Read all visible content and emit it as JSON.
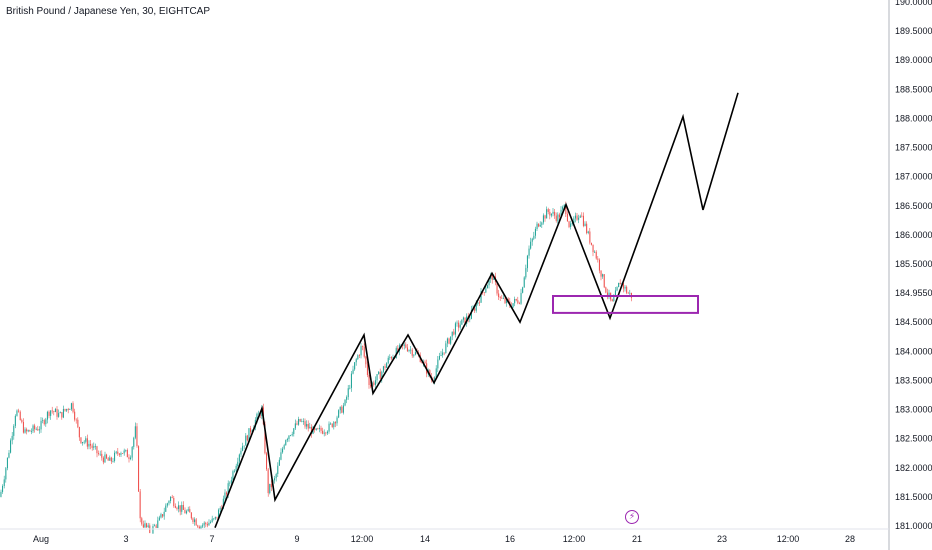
{
  "header": {
    "title": "British Pound / Japanese Yen, 30, EIGHTCAP"
  },
  "colors": {
    "up": "#26a69a",
    "down": "#ef5350",
    "line": "#000000",
    "box": "#9c27b0",
    "axis": "#b2b5be"
  },
  "icons": {
    "event": "lightning-icon"
  },
  "chart_data": {
    "type": "candlestick",
    "title": "British Pound / Japanese Yen, 30, EIGHTCAP",
    "y_ticks": [
      "190.00000",
      "189.50000",
      "189.00000",
      "188.50000",
      "188.00000",
      "187.50000",
      "187.00000",
      "186.50000",
      "186.00000",
      "185.50000",
      "184.95500",
      "184.50000",
      "184.00000",
      "183.50000",
      "183.00000",
      "182.50000",
      "182.00000",
      "181.50000",
      "181.00000"
    ],
    "ylim": [
      180.97,
      190.02
    ],
    "x_ticks": [
      "Aug",
      "3",
      "7",
      "9",
      "12:00",
      "14",
      "16",
      "12:00",
      "21",
      "23",
      "12:00",
      "28"
    ],
    "price_series": [
      [
        0,
        181.5
      ],
      [
        8,
        182.2
      ],
      [
        16,
        183.0
      ],
      [
        25,
        182.6
      ],
      [
        40,
        182.7
      ],
      [
        50,
        183.0
      ],
      [
        60,
        182.9
      ],
      [
        72,
        183.1
      ],
      [
        80,
        182.5
      ],
      [
        90,
        182.4
      ],
      [
        100,
        182.2
      ],
      [
        110,
        182.1
      ],
      [
        120,
        182.3
      ],
      [
        130,
        182.2
      ],
      [
        136,
        182.7
      ],
      [
        140,
        181.1
      ],
      [
        150,
        180.9
      ],
      [
        160,
        181.1
      ],
      [
        170,
        181.5
      ],
      [
        180,
        181.3
      ],
      [
        190,
        181.2
      ],
      [
        200,
        181.0
      ],
      [
        215,
        181.1
      ],
      [
        225,
        181.5
      ],
      [
        240,
        182.3
      ],
      [
        255,
        182.8
      ],
      [
        262,
        183.0
      ],
      [
        268,
        181.6
      ],
      [
        275,
        181.8
      ],
      [
        285,
        182.5
      ],
      [
        300,
        182.8
      ],
      [
        315,
        182.6
      ],
      [
        330,
        182.7
      ],
      [
        345,
        183.1
      ],
      [
        355,
        183.8
      ],
      [
        362,
        184.1
      ],
      [
        370,
        183.4
      ],
      [
        380,
        183.6
      ],
      [
        390,
        183.9
      ],
      [
        405,
        184.1
      ],
      [
        420,
        183.9
      ],
      [
        432,
        183.5
      ],
      [
        440,
        183.9
      ],
      [
        455,
        184.4
      ],
      [
        470,
        184.6
      ],
      [
        485,
        185.1
      ],
      [
        492,
        185.3
      ],
      [
        500,
        184.9
      ],
      [
        510,
        184.8
      ],
      [
        520,
        184.9
      ],
      [
        528,
        185.7
      ],
      [
        538,
        186.2
      ],
      [
        548,
        186.4
      ],
      [
        558,
        186.3
      ],
      [
        565,
        186.5
      ],
      [
        570,
        186.1
      ],
      [
        580,
        186.4
      ],
      [
        588,
        186.0
      ],
      [
        597,
        185.6
      ],
      [
        605,
        185.1
      ],
      [
        612,
        184.8
      ],
      [
        620,
        185.2
      ],
      [
        628,
        185.0
      ],
      [
        632,
        184.95
      ]
    ],
    "projection_path": [
      [
        215,
        180.97
      ],
      [
        262,
        183.02
      ],
      [
        275,
        181.45
      ],
      [
        364,
        184.28
      ],
      [
        373,
        183.28
      ],
      [
        408,
        184.28
      ],
      [
        434,
        183.46
      ],
      [
        492,
        185.34
      ],
      [
        520,
        184.5
      ],
      [
        566,
        186.52
      ],
      [
        610,
        184.57
      ],
      [
        683,
        188.03
      ],
      [
        703,
        186.43
      ],
      [
        738,
        188.44
      ]
    ],
    "zone": {
      "x1": 553,
      "x2": 698,
      "y_high": 184.95,
      "y_low": 184.66
    },
    "grid": false,
    "legend": "none"
  }
}
